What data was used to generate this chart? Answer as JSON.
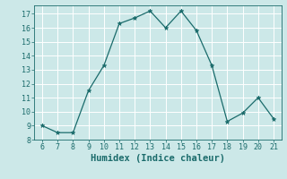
{
  "x": [
    6,
    7,
    8,
    9,
    10,
    11,
    12,
    13,
    14,
    15,
    16,
    17,
    18,
    19,
    20,
    21
  ],
  "y": [
    9.0,
    8.5,
    8.5,
    11.5,
    13.3,
    16.3,
    16.7,
    17.2,
    16.0,
    17.2,
    15.8,
    13.3,
    9.3,
    9.9,
    11.0,
    9.5
  ],
  "line_color": "#1a6b6b",
  "marker": "*",
  "marker_size": 3.5,
  "xlabel": "Humidex (Indice chaleur)",
  "xlim": [
    5.5,
    21.5
  ],
  "ylim": [
    8,
    17.6
  ],
  "xticks": [
    6,
    7,
    8,
    9,
    10,
    11,
    12,
    13,
    14,
    15,
    16,
    17,
    18,
    19,
    20,
    21
  ],
  "yticks": [
    8,
    9,
    10,
    11,
    12,
    13,
    14,
    15,
    16,
    17
  ],
  "bg_color": "#cce8e8",
  "grid_color": "#ffffff",
  "tick_color": "#1a6b6b",
  "label_color": "#1a6b6b",
  "tick_fontsize": 6.0,
  "label_fontsize": 7.5
}
